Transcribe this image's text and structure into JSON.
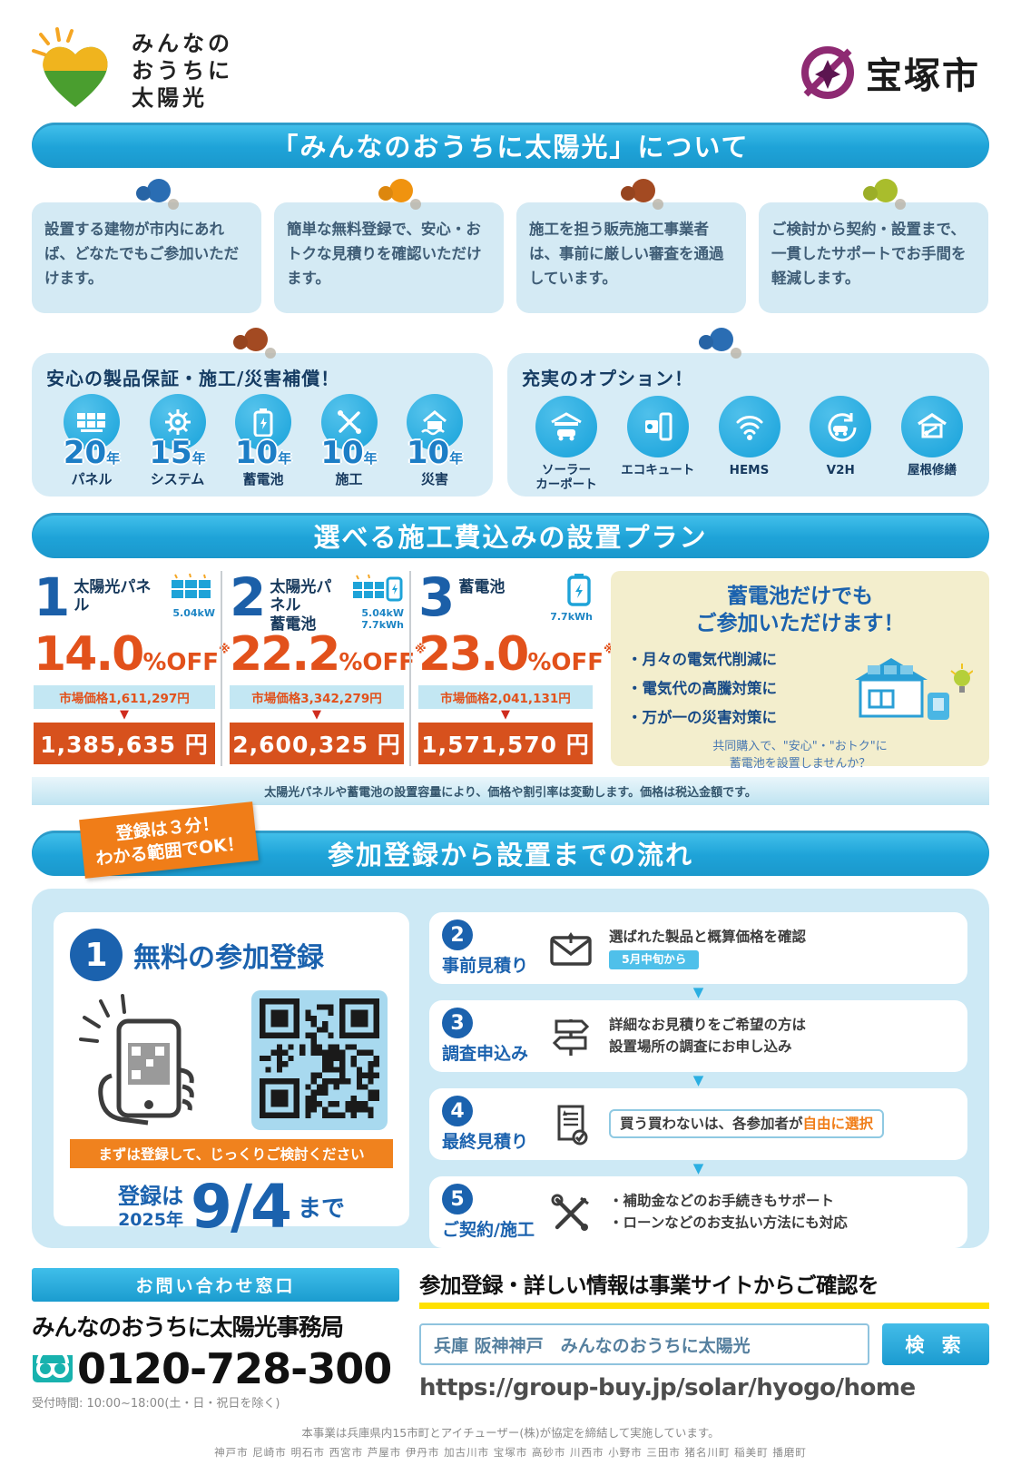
{
  "header": {
    "logo": {
      "line1": "みんなの",
      "line2": "おうちに",
      "line3": "太陽光"
    },
    "city": {
      "name": "宝塚市",
      "mark_color": "#8e2a72"
    }
  },
  "colors": {
    "banner_blue": "#1ea3d8",
    "accent_orange": "#e2511b",
    "deep_blue": "#1b62ae",
    "panel_bg": "#d7ecf6",
    "battery_box_bg": "#f3eecd",
    "highlight_yellow": "#ffe100",
    "freephone_teal": "#18b2ae"
  },
  "section_about": {
    "banner": "「みんなのおうちに太陽光」について",
    "cards": [
      {
        "text": "設置する建物が市内にあれば、どなたでもご参加いただけます。",
        "pin_color": "#2a6db3"
      },
      {
        "text": "簡単な無料登録で、安心・おトクな見積りを確認いただけます。",
        "pin_color": "#f0930f"
      },
      {
        "text": "施工を担う販売施工事業者は、事前に厳しい審査を通過しています。",
        "pin_color": "#a34a22"
      },
      {
        "text": "ご検討から契約・設置まで、一貫したサポートでお手間を軽減します。",
        "pin_color": "#a9bd2c"
      }
    ],
    "warranty": {
      "title": "安心の製品保証・施工/災害補償！",
      "items": [
        {
          "icon": "solar-panel-icon",
          "years": "20",
          "unit": "年",
          "label": "パネル"
        },
        {
          "icon": "gear-icon",
          "years": "15",
          "unit": "年",
          "label": "システム"
        },
        {
          "icon": "battery-icon",
          "years": "10",
          "unit": "年",
          "label": "蓄電池"
        },
        {
          "icon": "tools-icon",
          "years": "10",
          "unit": "年",
          "label": "施工"
        },
        {
          "icon": "disaster-icon",
          "years": "10",
          "unit": "年",
          "label": "災害"
        }
      ]
    },
    "options": {
      "title": "充実のオプション！",
      "items": [
        {
          "icon": "solar-carport-icon",
          "label": "ソーラー\nカーポート"
        },
        {
          "icon": "ecocute-icon",
          "label": "エコキュート"
        },
        {
          "icon": "hems-icon",
          "label": "HEMS"
        },
        {
          "icon": "v2h-icon",
          "label": "V2H"
        },
        {
          "icon": "roof-repair-icon",
          "label": "屋根修繕"
        }
      ]
    }
  },
  "section_plans": {
    "banner": "選べる施工費込みの設置プラン",
    "plans": [
      {
        "number": "1",
        "name": "太陽光パネル",
        "name2": "",
        "capacity": "5.04kW",
        "discount": "14.0",
        "off": "%OFF",
        "note_mark": "※",
        "market_label": "市場価格",
        "market_price": "1,611,297円",
        "price": "1,385,635 円"
      },
      {
        "number": "2",
        "name": "太陽光パネル",
        "name2": "蓄電池",
        "capacity": "5.04kW 7.7kWh",
        "discount": "22.2",
        "off": "%OFF",
        "note_mark": "※",
        "market_label": "市場価格",
        "market_price": "3,342,279円",
        "price": "2,600,325 円"
      },
      {
        "number": "3",
        "name": "蓄電池",
        "name2": "",
        "capacity": "7.7kWh",
        "discount": "23.0",
        "off": "%OFF",
        "note_mark": "※",
        "market_label": "市場価格",
        "market_price": "2,041,131円",
        "price": "1,571,570 円"
      }
    ],
    "battery_box": {
      "title_line1": "蓄電池だけでも",
      "title_line2": "ご参加いただけます！",
      "bullets": [
        {
          "text": "月々の電気代削減に"
        },
        {
          "text": "電気代の高騰対策に"
        },
        {
          "text": "万が一の災害対策に"
        }
      ],
      "footer_line1": "共同購入で、\"安心\"・\"おトク\"に",
      "footer_line2": "蓄電池を設置しませんか？"
    },
    "note": "太陽光パネルや蓄電池の設置容量により、価格や割引率は変動します。価格は税込金額です。"
  },
  "section_flow": {
    "ribbon_line1": "登録は３分！",
    "ribbon_line2": "わかる範囲でOK！",
    "banner": "参加登録から設置までの流れ",
    "step1": {
      "number": "1",
      "title": "無料の参加登録",
      "register_bar": "まずは登録して、じっくりご検討ください",
      "deadline_prefix": "登録は",
      "deadline_year": "2025年",
      "deadline_date": "9/4",
      "deadline_suffix": "まで"
    },
    "steps": [
      {
        "number": "2",
        "title": "事前見積り",
        "icon": "mail-icon",
        "desc": "選ばれた製品と概算価格を確認",
        "badge": "5月中旬から"
      },
      {
        "number": "3",
        "title": "調査申込み",
        "icon": "signpost-icon",
        "desc1": "詳細なお見積りをご希望の方は",
        "desc2": "設置場所の調査にお申し込み"
      },
      {
        "number": "4",
        "title": "最終見積り",
        "icon": "quote-document-icon",
        "desc_pre": "買う買わないは、各参加者が",
        "desc_highlight": "自由に選択"
      },
      {
        "number": "5",
        "title": "ご契約/施工",
        "icon": "tools-icon",
        "desc1": "・補助金などのお手続きもサポート",
        "desc2": "・ローンなどのお支払い方法にも対応"
      }
    ]
  },
  "section_contact": {
    "bar": "お問い合わせ窓口",
    "office": "みんなのおうちに太陽光事務局",
    "phone": "0120-728-300",
    "hours": "受付時間: 10:00~18:00(土・日・祝日を除く)",
    "site_heading": "参加登録・詳しい情報は事業サイトからご確認を",
    "search_query": "兵庫 阪神神戸　みんなのおうちに太陽光",
    "search_button": "検 索",
    "url": "https://group-buy.jp/solar/hyogo/home",
    "footnote1": "本事業は兵庫県内15市町とアイチューザー(株)が協定を締結して実施しています。",
    "footnote2": "神戸市 尼崎市 明石市 西宮市 芦屋市 伊丹市 加古川市 宝塚市 高砂市 川西市 小野市 三田市 猪名川町 稲美町 播磨町"
  }
}
